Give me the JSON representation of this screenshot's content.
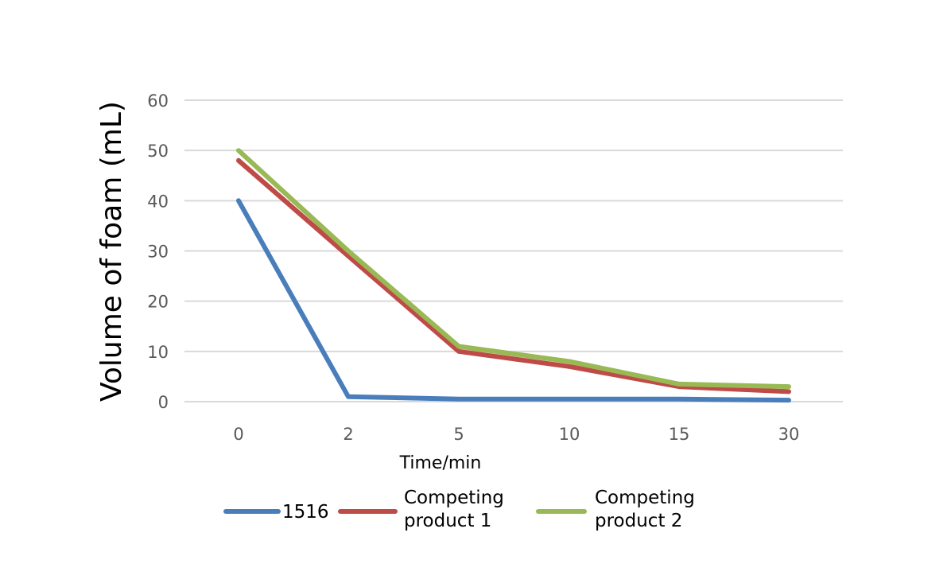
{
  "chart_data": {
    "type": "line",
    "title": "",
    "xlabel": "Time/min",
    "ylabel": "Volume of foam (mL)",
    "categories": [
      "0",
      "2",
      "5",
      "10",
      "15",
      "30"
    ],
    "ylim": [
      0,
      60
    ],
    "yticks": [
      0,
      10,
      20,
      30,
      40,
      50,
      60
    ],
    "grid": true,
    "legend_position": "bottom",
    "series": [
      {
        "name": "1516",
        "legend_lines": [
          "1516"
        ],
        "color": "#4a7ebb",
        "values": [
          40,
          1,
          0.5,
          0.5,
          0.5,
          0.3
        ]
      },
      {
        "name": "Competing product 1",
        "legend_lines": [
          "Competing",
          "product 1"
        ],
        "color": "#be4b48",
        "values": [
          48,
          29,
          10,
          7,
          3,
          2
        ]
      },
      {
        "name": "Competing product 2",
        "legend_lines": [
          "Competing",
          "product 2"
        ],
        "color": "#98b954",
        "values": [
          50,
          30,
          11,
          8,
          3.5,
          3
        ]
      }
    ]
  }
}
